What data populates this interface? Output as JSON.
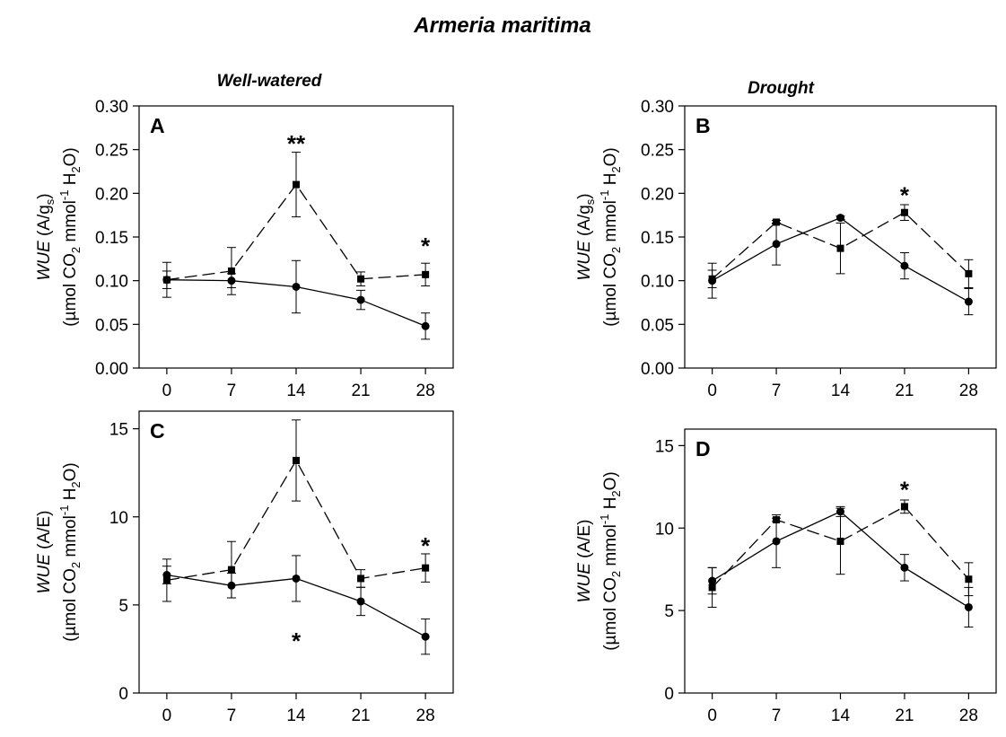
{
  "figure": {
    "title": "Armeria maritima",
    "columns": [
      "Well-watered",
      "Drought"
    ]
  },
  "chart_data": [
    {
      "id": "A",
      "type": "line",
      "panel_label": "A",
      "ylabel_line1": [
        "WUE",
        " (A/g",
        "s",
        ")"
      ],
      "ylabel_line2": [
        "(µmol CO",
        "2",
        " mmol",
        "-1",
        " H",
        "2",
        "O)"
      ],
      "x": [
        0,
        7,
        14,
        21,
        28
      ],
      "xticks": [
        "0",
        "7",
        "14",
        "21",
        "28"
      ],
      "ylim": [
        0,
        0.3
      ],
      "yticks": [
        "0.00",
        "0.05",
        "0.10",
        "0.15",
        "0.20",
        "0.25",
        "0.30"
      ],
      "series": [
        {
          "style": "solid",
          "marker": "circle",
          "values": [
            0.101,
            0.1,
            0.093,
            0.078,
            0.048
          ],
          "err": [
            0.01,
            0.008,
            0.03,
            0.011,
            0.015
          ]
        },
        {
          "style": "dashed",
          "marker": "square",
          "values": [
            0.101,
            0.111,
            0.21,
            0.102,
            0.107
          ],
          "err": [
            0.02,
            0.027,
            0.037,
            0.008,
            0.013
          ]
        }
      ],
      "annotations": [
        {
          "x": 14,
          "y": 0.262,
          "text": "**"
        },
        {
          "x": 28,
          "y": 0.145,
          "text": "*"
        }
      ]
    },
    {
      "id": "B",
      "type": "line",
      "panel_label": "B",
      "ylabel_line1": [
        "WUE",
        " (A/g",
        "s",
        ")"
      ],
      "ylabel_line2": [
        "(µmol CO",
        "2",
        " mmol",
        "-1",
        " H",
        "2",
        "O)"
      ],
      "x": [
        0,
        7,
        14,
        21,
        28
      ],
      "xticks": [
        "0",
        "7",
        "14",
        "21",
        "28"
      ],
      "ylim": [
        0,
        0.3
      ],
      "yticks": [
        "0.00",
        "0.05",
        "0.10",
        "0.15",
        "0.20",
        "0.25",
        "0.30"
      ],
      "series": [
        {
          "style": "solid",
          "marker": "circle",
          "values": [
            0.1,
            0.142,
            0.172,
            0.117,
            0.076
          ],
          "err": [
            0.02,
            0.024,
            0.002,
            0.015,
            0.015
          ]
        },
        {
          "style": "dashed",
          "marker": "square",
          "values": [
            0.102,
            0.167,
            0.137,
            0.178,
            0.108
          ],
          "err": [
            0.01,
            0.002,
            0.029,
            0.009,
            0.016
          ]
        }
      ],
      "annotations": [
        {
          "x": 21,
          "y": 0.203,
          "text": "*"
        }
      ]
    },
    {
      "id": "C",
      "type": "line",
      "panel_label": "C",
      "ylabel_line1": [
        "WUE",
        " (A/E)",
        "",
        ""
      ],
      "ylabel_line2": [
        "(µmol CO",
        "2",
        " mmol",
        "-1",
        " H",
        "2",
        "O)"
      ],
      "x": [
        0,
        7,
        14,
        21,
        28
      ],
      "xticks": [
        "0",
        "7",
        "14",
        "21",
        "28"
      ],
      "ylim": [
        0,
        16
      ],
      "yticks": [
        "0",
        "5",
        "10",
        "15"
      ],
      "series": [
        {
          "style": "solid",
          "marker": "circle",
          "values": [
            6.7,
            6.1,
            6.5,
            5.2,
            3.2
          ],
          "err": [
            0.5,
            0.7,
            1.3,
            0.8,
            1.0
          ]
        },
        {
          "style": "dashed",
          "marker": "square",
          "values": [
            6.4,
            7.0,
            13.2,
            6.5,
            7.1
          ],
          "err": [
            1.2,
            1.6,
            2.3,
            0.5,
            0.8
          ]
        }
      ],
      "annotations": [
        {
          "x": 14,
          "y": 3.2,
          "text": "*"
        },
        {
          "x": 28,
          "y": 8.6,
          "text": "*"
        }
      ]
    },
    {
      "id": "D",
      "type": "line",
      "panel_label": "D",
      "ylabel_line1": [
        "WUE",
        " (A/E)",
        "",
        ""
      ],
      "ylabel_line2": [
        "(µmol CO",
        "2",
        " mmol",
        "-1",
        " H",
        "2",
        "O)"
      ],
      "x": [
        0,
        7,
        14,
        21,
        28
      ],
      "xticks": [
        "0",
        "7",
        "14",
        "21",
        "28"
      ],
      "ylim": [
        0,
        16
      ],
      "yticks": [
        "0",
        "5",
        "10",
        "15"
      ],
      "series": [
        {
          "style": "solid",
          "marker": "circle",
          "values": [
            6.8,
            9.2,
            11.0,
            7.6,
            5.2
          ],
          "err": [
            0.8,
            1.6,
            0.3,
            0.8,
            1.2
          ]
        },
        {
          "style": "dashed",
          "marker": "square",
          "values": [
            6.4,
            10.5,
            9.2,
            11.3,
            6.9
          ],
          "err": [
            1.2,
            0.1,
            2.0,
            0.4,
            1.0
          ]
        }
      ],
      "annotations": [
        {
          "x": 21,
          "y": 12.6,
          "text": "*"
        }
      ]
    }
  ]
}
